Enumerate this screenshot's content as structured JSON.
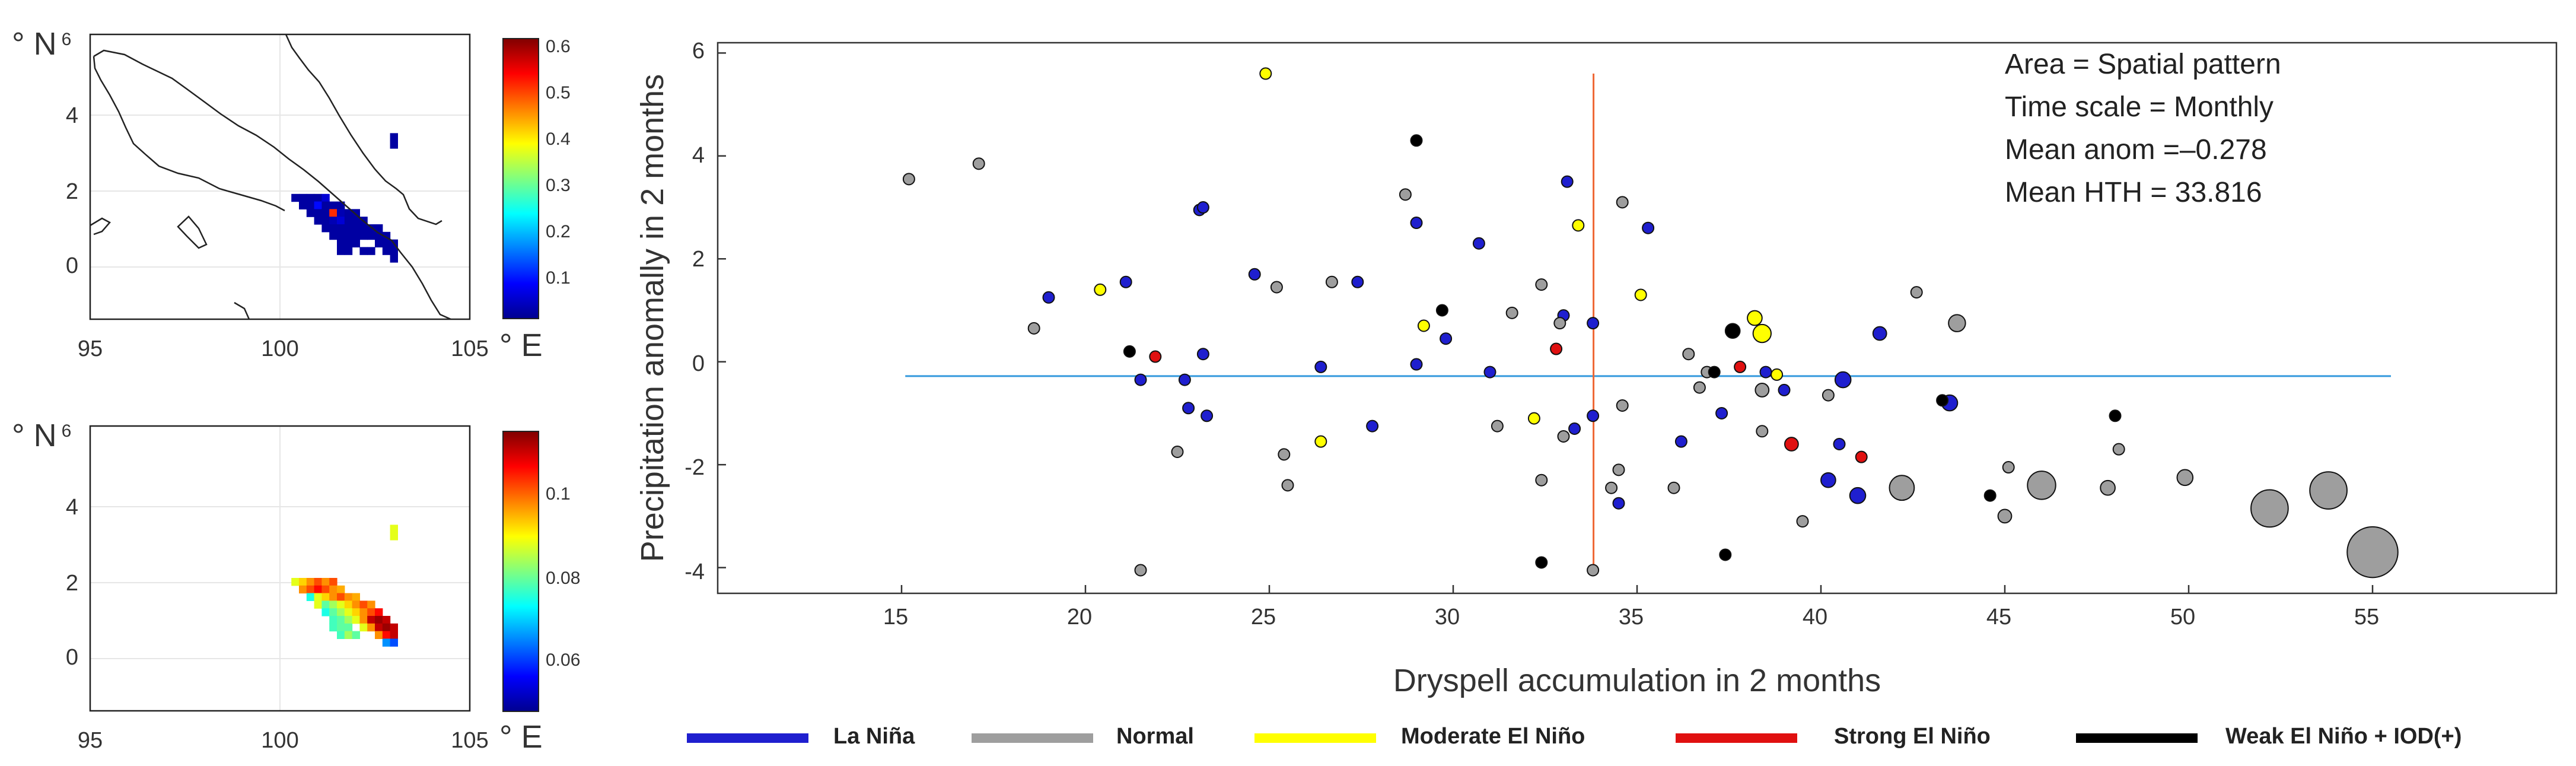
{
  "chart_data": [
    {
      "type": "heatmap",
      "units": {
        "lat": "° N",
        "lon": "° E"
      },
      "x_ticks": [
        "95",
        "100",
        "105"
      ],
      "y_ticks": [
        "6",
        "4",
        "2",
        "0"
      ],
      "xlim": [
        95,
        105
      ],
      "ylim": [
        -1.5,
        6
      ],
      "colorbar": {
        "range": [
          0,
          0.6
        ],
        "ticks": [
          "0.6",
          "0.5",
          "0.4",
          "0.3",
          "0.2",
          "0.1"
        ]
      },
      "cells": [
        [
          103.0,
          3.3,
          0.02
        ],
        [
          103.0,
          3.1,
          0.02
        ],
        [
          100.4,
          1.7,
          0.02
        ],
        [
          100.6,
          1.7,
          0.02
        ],
        [
          100.8,
          1.7,
          0.02
        ],
        [
          101.0,
          1.7,
          0.02
        ],
        [
          101.2,
          1.7,
          0.05
        ],
        [
          100.6,
          1.5,
          0.02
        ],
        [
          100.8,
          1.5,
          0.02
        ],
        [
          101.0,
          1.5,
          0.08
        ],
        [
          101.2,
          1.5,
          0.02
        ],
        [
          101.4,
          1.5,
          0.02
        ],
        [
          101.6,
          1.5,
          0.02
        ],
        [
          100.8,
          1.3,
          0.02
        ],
        [
          101.0,
          1.3,
          0.02
        ],
        [
          101.2,
          1.3,
          0.02
        ],
        [
          101.4,
          1.3,
          0.5
        ],
        [
          101.6,
          1.3,
          0.03
        ],
        [
          101.8,
          1.3,
          0.02
        ],
        [
          102.0,
          1.3,
          0.02
        ],
        [
          101.0,
          1.1,
          0.02
        ],
        [
          101.2,
          1.1,
          0.02
        ],
        [
          101.4,
          1.1,
          0.03
        ],
        [
          101.6,
          1.1,
          0.05
        ],
        [
          101.8,
          1.1,
          0.02
        ],
        [
          102.0,
          1.1,
          0.02
        ],
        [
          102.2,
          1.1,
          0.02
        ],
        [
          101.2,
          0.9,
          0.02
        ],
        [
          101.4,
          0.9,
          0.02
        ],
        [
          101.6,
          0.9,
          0.02
        ],
        [
          101.8,
          0.9,
          0.02
        ],
        [
          102.0,
          0.9,
          0.02
        ],
        [
          102.2,
          0.9,
          0.02
        ],
        [
          102.4,
          0.9,
          0.02
        ],
        [
          102.6,
          0.9,
          0.02
        ],
        [
          101.4,
          0.7,
          0.02
        ],
        [
          101.6,
          0.7,
          0.02
        ],
        [
          101.8,
          0.7,
          0.02
        ],
        [
          102.0,
          0.7,
          0.02
        ],
        [
          102.2,
          0.7,
          0.02
        ],
        [
          102.4,
          0.7,
          0.02
        ],
        [
          102.6,
          0.7,
          0.02
        ],
        [
          102.8,
          0.7,
          0.02
        ],
        [
          101.6,
          0.5,
          0.02
        ],
        [
          101.8,
          0.5,
          0.02
        ],
        [
          102.0,
          0.5,
          0.02
        ],
        [
          102.6,
          0.5,
          0.02
        ],
        [
          102.8,
          0.5,
          0.02
        ],
        [
          103.0,
          0.5,
          0.02
        ],
        [
          101.6,
          0.3,
          0.02
        ],
        [
          101.8,
          0.3,
          0.02
        ],
        [
          102.2,
          0.3,
          0.02
        ],
        [
          102.4,
          0.3,
          0.02
        ],
        [
          102.8,
          0.3,
          0.02
        ],
        [
          103.0,
          0.3,
          0.02
        ],
        [
          103.0,
          0.1,
          0.02
        ]
      ]
    },
    {
      "type": "heatmap",
      "units": {
        "lat": "° N",
        "lon": "° E"
      },
      "x_ticks": [
        "95",
        "100",
        "105"
      ],
      "y_ticks": [
        "6",
        "4",
        "2",
        "0"
      ],
      "xlim": [
        95,
        105
      ],
      "ylim": [
        -1.5,
        6
      ],
      "colorbar": {
        "range": [
          0.045,
          0.12
        ],
        "ticks": [
          "0.1",
          "0.08",
          "0.06"
        ]
      },
      "cells": [
        [
          103.0,
          3.3,
          0.09
        ],
        [
          103.0,
          3.1,
          0.09
        ],
        [
          100.4,
          1.9,
          0.09
        ],
        [
          100.6,
          1.9,
          0.095
        ],
        [
          100.8,
          1.9,
          0.1
        ],
        [
          101.0,
          1.9,
          0.105
        ],
        [
          101.2,
          1.9,
          0.1
        ],
        [
          101.4,
          1.9,
          0.105
        ],
        [
          100.6,
          1.7,
          0.1
        ],
        [
          100.8,
          1.7,
          0.105
        ],
        [
          101.0,
          1.7,
          0.11
        ],
        [
          101.2,
          1.7,
          0.105
        ],
        [
          101.4,
          1.7,
          0.1
        ],
        [
          101.6,
          1.7,
          0.098
        ],
        [
          100.8,
          1.5,
          0.075
        ],
        [
          101.0,
          1.5,
          0.09
        ],
        [
          101.2,
          1.5,
          0.095
        ],
        [
          101.4,
          1.5,
          0.1
        ],
        [
          101.6,
          1.5,
          0.105
        ],
        [
          101.8,
          1.5,
          0.1
        ],
        [
          102.0,
          1.5,
          0.098
        ],
        [
          101.0,
          1.3,
          0.09
        ],
        [
          101.2,
          1.3,
          0.08
        ],
        [
          101.4,
          1.3,
          0.085
        ],
        [
          101.6,
          1.3,
          0.09
        ],
        [
          101.8,
          1.3,
          0.095
        ],
        [
          102.0,
          1.3,
          0.1
        ],
        [
          102.2,
          1.3,
          0.105
        ],
        [
          102.4,
          1.3,
          0.1
        ],
        [
          101.2,
          1.1,
          0.075
        ],
        [
          101.4,
          1.1,
          0.08
        ],
        [
          101.6,
          1.1,
          0.085
        ],
        [
          101.8,
          1.1,
          0.09
        ],
        [
          102.0,
          1.1,
          0.095
        ],
        [
          102.2,
          1.1,
          0.1
        ],
        [
          102.4,
          1.1,
          0.105
        ],
        [
          102.6,
          1.1,
          0.11
        ],
        [
          101.4,
          0.9,
          0.078
        ],
        [
          101.6,
          0.9,
          0.08
        ],
        [
          101.8,
          0.9,
          0.085
        ],
        [
          102.0,
          0.9,
          0.09
        ],
        [
          102.2,
          0.9,
          0.1
        ],
        [
          102.4,
          0.9,
          0.115
        ],
        [
          102.6,
          0.9,
          0.118
        ],
        [
          102.8,
          0.9,
          0.115
        ],
        [
          101.4,
          0.7,
          0.078
        ],
        [
          101.6,
          0.7,
          0.08
        ],
        [
          101.8,
          0.7,
          0.08
        ],
        [
          102.2,
          0.7,
          0.09
        ],
        [
          102.4,
          0.7,
          0.1
        ],
        [
          102.6,
          0.7,
          0.115
        ],
        [
          102.8,
          0.7,
          0.118
        ],
        [
          103.0,
          0.7,
          0.115
        ],
        [
          101.6,
          0.5,
          0.078
        ],
        [
          101.8,
          0.5,
          0.085
        ],
        [
          102.0,
          0.5,
          0.08
        ],
        [
          102.6,
          0.5,
          0.1
        ],
        [
          102.8,
          0.5,
          0.11
        ],
        [
          103.0,
          0.5,
          0.115
        ],
        [
          102.8,
          0.3,
          0.065
        ],
        [
          103.0,
          0.3,
          0.06
        ]
      ]
    },
    {
      "type": "scatter",
      "xlabel": "Dryspell accumulation in 2 months",
      "ylabel": "Precipitation anomally in 2  months",
      "xlim": [
        10,
        60
      ],
      "ylim": [
        -4.5,
        6.2
      ],
      "x_ticks": [
        "15",
        "20",
        "25",
        "30",
        "35",
        "40",
        "45",
        "50",
        "55"
      ],
      "y_ticks": [
        "6",
        "4",
        "2",
        "0",
        "-2",
        "-4"
      ],
      "annotations": [
        "Area = Spatial pattern",
        "Time scale = Monthly",
        "Mean anom =–0.278",
        "Mean HTH = 33.816"
      ],
      "reference_lines": {
        "horizontal_y": -0.278,
        "horizontal_x_range": [
          15.1,
          55.5
        ],
        "vertical_x": 33.816,
        "vertical_y_range": [
          -4,
          5.6
        ]
      },
      "colors": {
        "La Niña": "#1f1fcf",
        "Normal": "#9e9e9e",
        "Moderate El Niño": "#ffff00",
        "Strong El Niño": "#e01010",
        "Weak El Niño + IOD(+)": "#000000",
        "hline": "#3399dd",
        "vline": "#ee6633"
      },
      "series": [
        {
          "name": "La Niña",
          "points": [
            [
              19.0,
              1.25,
              1
            ],
            [
              21.1,
              1.55,
              1
            ],
            [
              21.5,
              -0.35,
              1
            ],
            [
              22.7,
              -0.35,
              1
            ],
            [
              22.8,
              -0.9,
              1
            ],
            [
              23.1,
              2.95,
              1
            ],
            [
              23.2,
              3.0,
              1
            ],
            [
              23.2,
              0.15,
              1
            ],
            [
              23.3,
              -1.05,
              1
            ],
            [
              24.6,
              1.7,
              1
            ],
            [
              26.4,
              -0.1,
              1
            ],
            [
              27.4,
              1.55,
              1
            ],
            [
              27.8,
              -1.25,
              1
            ],
            [
              29.0,
              2.7,
              1
            ],
            [
              29.0,
              -0.05,
              1
            ],
            [
              29.8,
              0.45,
              1
            ],
            [
              30.7,
              2.3,
              1
            ],
            [
              31.0,
              -0.2,
              1
            ],
            [
              33.0,
              0.9,
              1
            ],
            [
              33.1,
              3.5,
              1
            ],
            [
              33.3,
              -1.3,
              1
            ],
            [
              33.8,
              -1.05,
              1
            ],
            [
              33.8,
              0.75,
              1
            ],
            [
              35.3,
              2.6,
              1
            ],
            [
              34.5,
              -2.75,
              1
            ],
            [
              36.2,
              -1.55,
              1
            ],
            [
              37.3,
              -1.0,
              1
            ],
            [
              38.5,
              -0.2,
              1
            ],
            [
              39.0,
              -0.55,
              1
            ],
            [
              40.6,
              -0.35,
              1.4
            ],
            [
              40.5,
              -1.6,
              1
            ],
            [
              40.2,
              -2.3,
              1.3
            ],
            [
              41.0,
              -2.6,
              1.4
            ],
            [
              41.6,
              0.55,
              1.2
            ],
            [
              43.5,
              -0.8,
              1.4
            ]
          ]
        },
        {
          "name": "Normal",
          "points": [
            [
              15.2,
              3.55,
              1
            ],
            [
              17.1,
              3.85,
              1
            ],
            [
              18.6,
              0.65,
              1
            ],
            [
              21.5,
              -4.05,
              1
            ],
            [
              22.5,
              -1.75,
              1
            ],
            [
              25.2,
              1.45,
              1
            ],
            [
              25.4,
              -1.8,
              1
            ],
            [
              25.5,
              -2.4,
              1
            ],
            [
              26.7,
              1.55,
              1
            ],
            [
              28.7,
              3.25,
              1
            ],
            [
              31.2,
              -1.25,
              1
            ],
            [
              31.6,
              0.95,
              1
            ],
            [
              32.4,
              1.5,
              1
            ],
            [
              32.4,
              -2.3,
              1
            ],
            [
              32.9,
              0.75,
              1
            ],
            [
              33.0,
              -1.45,
              1
            ],
            [
              33.8,
              -4.05,
              1
            ],
            [
              34.5,
              -2.1,
              1
            ],
            [
              34.6,
              3.1,
              1
            ],
            [
              34.6,
              -0.85,
              1
            ],
            [
              34.3,
              -2.45,
              1
            ],
            [
              36.0,
              -2.45,
              1
            ],
            [
              36.4,
              0.15,
              1
            ],
            [
              36.7,
              -0.5,
              1
            ],
            [
              36.9,
              -0.2,
              1
            ],
            [
              38.4,
              -0.55,
              1.2
            ],
            [
              38.4,
              -1.35,
              1
            ],
            [
              39.5,
              -3.1,
              1
            ],
            [
              40.2,
              -0.65,
              1
            ],
            [
              42.6,
              1.35,
              1
            ],
            [
              43.7,
              0.75,
              1.5
            ],
            [
              45.1,
              -2.05,
              1
            ],
            [
              45.0,
              -3.0,
              1.2
            ],
            [
              47.8,
              -2.45,
              1.3
            ],
            [
              48.1,
              -1.7,
              1
            ],
            [
              49.9,
              -2.25,
              1.4
            ],
            [
              42.2,
              -2.45,
              2.2
            ],
            [
              46.0,
              -2.4,
              2.5
            ],
            [
              52.2,
              -2.85,
              3.3
            ],
            [
              53.8,
              -2.5,
              3.3
            ],
            [
              55.0,
              -3.7,
              4.5
            ]
          ]
        },
        {
          "name": "Moderate El Niño",
          "points": [
            [
              24.9,
              5.6,
              1
            ],
            [
              20.4,
              1.4,
              1
            ],
            [
              26.4,
              -1.55,
              1
            ],
            [
              29.2,
              0.7,
              1
            ],
            [
              32.2,
              -1.1,
              1
            ],
            [
              33.4,
              2.65,
              1
            ],
            [
              35.1,
              1.3,
              1
            ],
            [
              38.2,
              0.85,
              1.3
            ],
            [
              38.4,
              0.55,
              1.6
            ],
            [
              38.8,
              -0.25,
              1
            ]
          ]
        },
        {
          "name": "Strong El Niño",
          "points": [
            [
              21.9,
              0.1,
              1
            ],
            [
              32.8,
              0.25,
              1
            ],
            [
              37.8,
              -0.1,
              1
            ],
            [
              39.2,
              -1.6,
              1.2
            ],
            [
              41.1,
              -1.85,
              1
            ]
          ]
        },
        {
          "name": "Weak El Niño + IOD(+)",
          "points": [
            [
              21.2,
              0.2,
              1
            ],
            [
              29.0,
              4.3,
              1
            ],
            [
              29.7,
              1.0,
              1
            ],
            [
              32.4,
              -3.9,
              1
            ],
            [
              37.1,
              -0.2,
              1
            ],
            [
              37.4,
              -3.75,
              1
            ],
            [
              37.6,
              0.6,
              1.3
            ],
            [
              43.3,
              -0.75,
              1
            ],
            [
              44.6,
              -2.6,
              1
            ],
            [
              48.0,
              -1.05,
              1
            ]
          ]
        }
      ]
    }
  ],
  "legend": [
    {
      "label": "La Niña",
      "color": "#1f1fcf"
    },
    {
      "label": "Normal",
      "color": "#9e9e9e"
    },
    {
      "label": "Moderate El Niño",
      "color": "#ffff00"
    },
    {
      "label": "Strong El Niño",
      "color": "#e01010"
    },
    {
      "label": "Weak El Niño + IOD(+)",
      "color": "#000000"
    }
  ]
}
